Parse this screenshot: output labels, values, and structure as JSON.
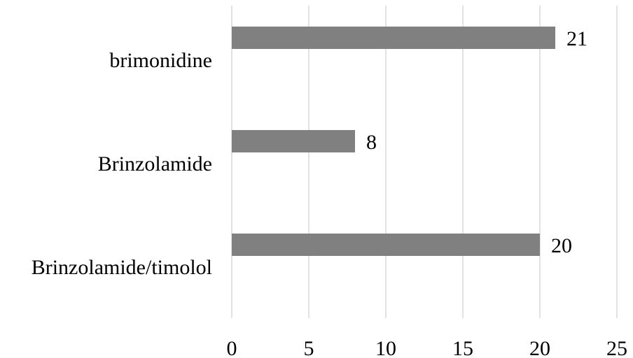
{
  "chart_data": {
    "type": "bar",
    "orientation": "horizontal",
    "categories": [
      "brimonidine",
      "Brinzolamide",
      "Brinzolamide/timolol"
    ],
    "values": [
      21,
      8,
      20
    ],
    "data_labels": [
      "21",
      "8",
      "20"
    ],
    "x_ticks": [
      "0",
      "5",
      "10",
      "15",
      "20",
      "25"
    ],
    "xlim": [
      0,
      25
    ],
    "grid": "vertical",
    "legend": "none",
    "bar_color": "#808080",
    "title": "",
    "xlabel": "",
    "ylabel": ""
  }
}
